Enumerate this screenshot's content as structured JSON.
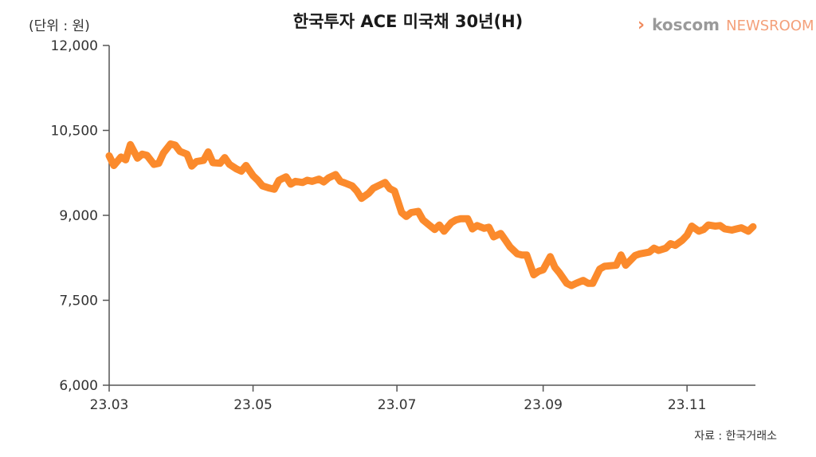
{
  "header": {
    "logo_mark": "›",
    "logo_word": "koscom",
    "logo_suffix": "NEWSROOM"
  },
  "footer": {
    "source": "자료 : 한국거래소"
  },
  "colors": {
    "line": "#fb8a2c",
    "axis": "#555555"
  },
  "chart_data": {
    "type": "line",
    "title": "한국투자 ACE 미국채 30년(H)",
    "unit_label": "(단위 : 원)",
    "ylim": [
      6000,
      12000
    ],
    "yticks": [
      6000,
      7500,
      9000,
      10500,
      12000
    ],
    "ytick_labels": [
      "6,000",
      "7,500",
      "9,000",
      "10,500",
      "12,000"
    ],
    "xlim": [
      "2023-03-01",
      "2023-11-30"
    ],
    "xticks": [
      "2023-03-01",
      "2023-05-01",
      "2023-07-01",
      "2023-09-01",
      "2023-11-01"
    ],
    "xtick_labels": [
      "23.03",
      "23.05",
      "23.07",
      "23.09",
      "23.11"
    ],
    "series": [
      {
        "x": [
          "2023-03-01",
          "2023-03-03",
          "2023-03-06",
          "2023-03-08",
          "2023-03-10",
          "2023-03-13",
          "2023-03-15",
          "2023-03-17",
          "2023-03-20",
          "2023-03-22",
          "2023-03-24",
          "2023-03-27",
          "2023-03-29",
          "2023-03-31",
          "2023-04-03",
          "2023-04-05",
          "2023-04-07",
          "2023-04-10",
          "2023-04-12",
          "2023-04-14",
          "2023-04-17",
          "2023-04-19",
          "2023-04-21",
          "2023-04-24",
          "2023-04-26",
          "2023-04-28",
          "2023-05-01",
          "2023-05-03",
          "2023-05-05",
          "2023-05-08",
          "2023-05-10",
          "2023-05-12",
          "2023-05-15",
          "2023-05-17",
          "2023-05-19",
          "2023-05-22",
          "2023-05-24",
          "2023-05-26",
          "2023-05-29",
          "2023-05-31",
          "2023-06-02",
          "2023-06-05",
          "2023-06-07",
          "2023-06-09",
          "2023-06-12",
          "2023-06-14",
          "2023-06-16",
          "2023-06-19",
          "2023-06-21",
          "2023-06-23",
          "2023-06-26",
          "2023-06-28",
          "2023-06-30",
          "2023-07-03",
          "2023-07-05",
          "2023-07-07",
          "2023-07-10",
          "2023-07-12",
          "2023-07-14",
          "2023-07-17",
          "2023-07-19",
          "2023-07-21",
          "2023-07-24",
          "2023-07-26",
          "2023-07-28",
          "2023-07-31",
          "2023-08-02",
          "2023-08-04",
          "2023-08-07",
          "2023-08-09",
          "2023-08-11",
          "2023-08-14",
          "2023-08-16",
          "2023-08-18",
          "2023-08-21",
          "2023-08-23",
          "2023-08-25",
          "2023-08-28",
          "2023-08-30",
          "2023-09-01",
          "2023-09-04",
          "2023-09-06",
          "2023-09-08",
          "2023-09-11",
          "2023-09-13",
          "2023-09-15",
          "2023-09-18",
          "2023-09-20",
          "2023-09-22",
          "2023-09-25",
          "2023-09-27",
          "2023-10-02",
          "2023-10-04",
          "2023-10-06",
          "2023-10-10",
          "2023-10-12",
          "2023-10-16",
          "2023-10-18",
          "2023-10-20",
          "2023-10-23",
          "2023-10-25",
          "2023-10-27",
          "2023-10-30",
          "2023-11-01",
          "2023-11-03",
          "2023-11-06",
          "2023-11-08",
          "2023-11-10",
          "2023-11-13",
          "2023-11-15",
          "2023-11-17",
          "2023-11-20",
          "2023-11-22",
          "2023-11-24",
          "2023-11-27",
          "2023-11-29"
        ],
        "values": [
          10050,
          9880,
          10030,
          9980,
          10250,
          10010,
          10080,
          10060,
          9900,
          9920,
          10100,
          10260,
          10240,
          10130,
          10080,
          9870,
          9950,
          9970,
          10120,
          9930,
          9920,
          10020,
          9900,
          9820,
          9780,
          9880,
          9700,
          9620,
          9520,
          9480,
          9460,
          9620,
          9680,
          9550,
          9600,
          9580,
          9620,
          9600,
          9640,
          9590,
          9660,
          9720,
          9600,
          9570,
          9520,
          9430,
          9300,
          9390,
          9480,
          9520,
          9580,
          9470,
          9430,
          9050,
          8980,
          9050,
          9070,
          8920,
          8850,
          8750,
          8830,
          8720,
          8870,
          8920,
          8940,
          8940,
          8760,
          8820,
          8770,
          8790,
          8620,
          8680,
          8560,
          8440,
          8320,
          8300,
          8300,
          7950,
          8010,
          8040,
          8270,
          8080,
          7980,
          7800,
          7760,
          7800,
          7850,
          7800,
          7800,
          8050,
          8100,
          8120,
          8300,
          8120,
          8290,
          8320,
          8350,
          8420,
          8380,
          8420,
          8500,
          8470,
          8560,
          8650,
          8810,
          8720,
          8750,
          8830,
          8810,
          8820,
          8760,
          8740,
          8760,
          8780,
          8720,
          8800
        ]
      }
    ],
    "grid": false,
    "legend": "none"
  }
}
